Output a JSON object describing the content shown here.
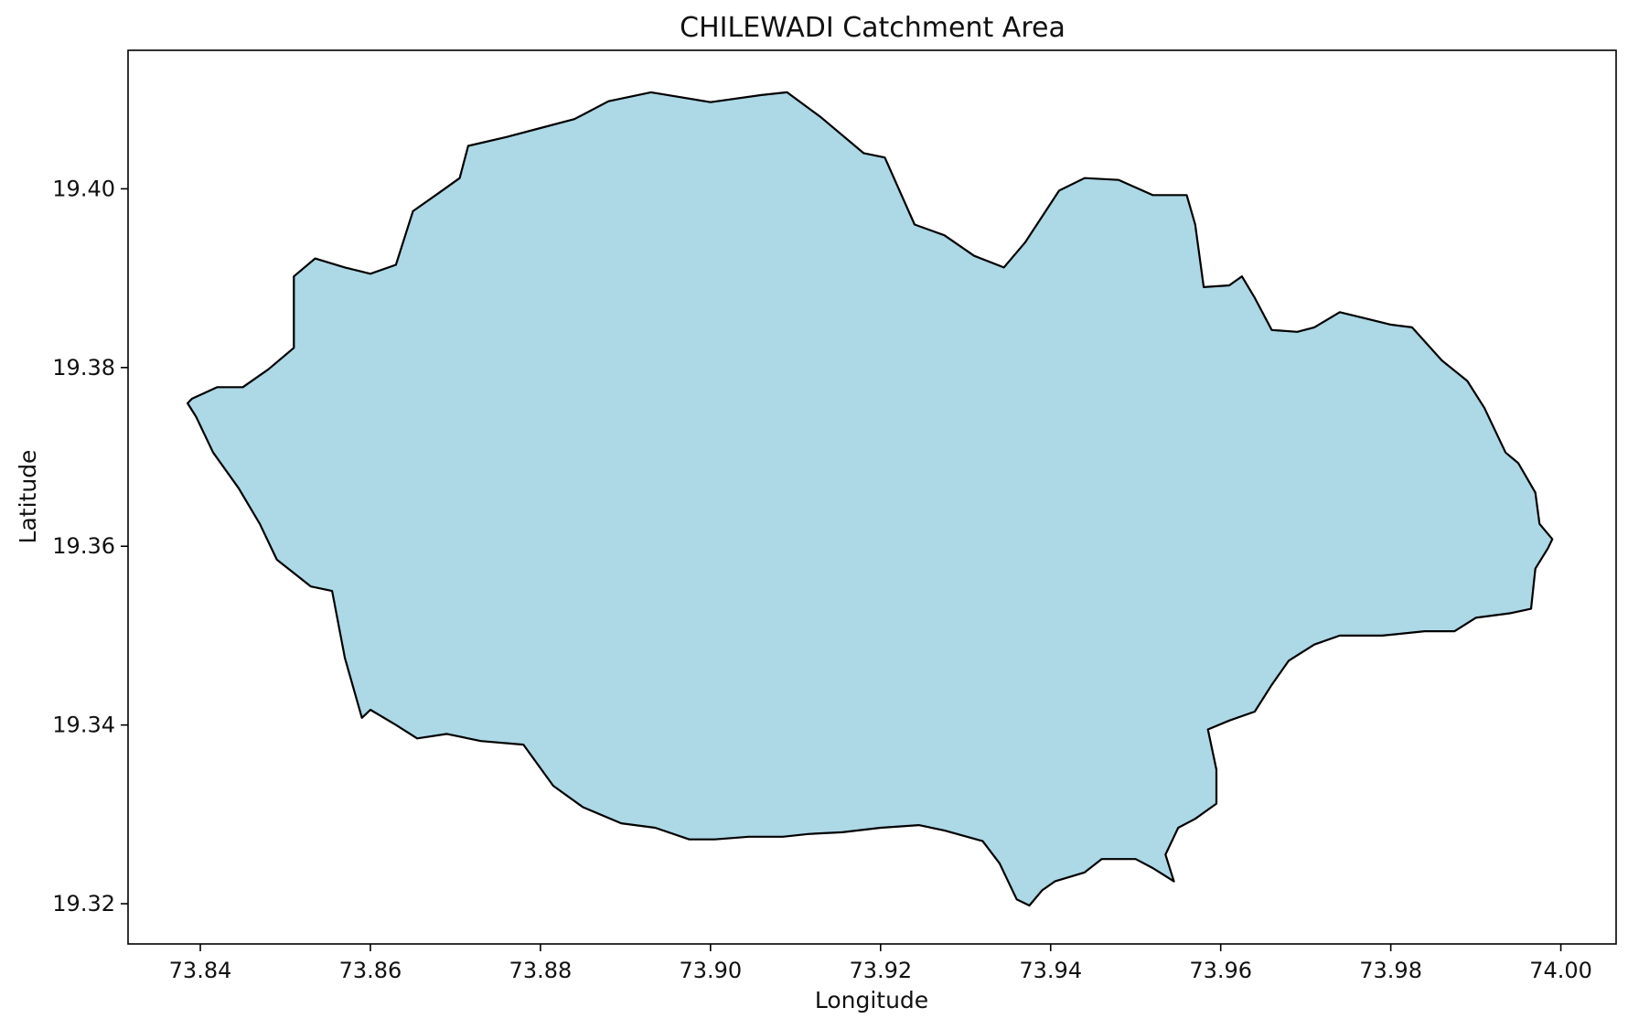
{
  "chart_data": {
    "type": "area",
    "title": "CHILEWADI Catchment Area",
    "xlabel": "Longitude",
    "ylabel": "Latitude",
    "xlim": [
      73.8315,
      74.0065
    ],
    "ylim": [
      19.3155,
      19.4155
    ],
    "xticks": [
      73.84,
      73.86,
      73.88,
      73.9,
      73.92,
      73.94,
      73.96,
      73.98,
      74.0
    ],
    "yticks": [
      19.32,
      19.34,
      19.36,
      19.38,
      19.4
    ],
    "x_tick_labels": [
      "73.84",
      "73.86",
      "73.88",
      "73.90",
      "73.92",
      "73.94",
      "73.96",
      "73.98",
      "74.00"
    ],
    "y_tick_labels": [
      "19.32",
      "19.34",
      "19.36",
      "19.38",
      "19.40"
    ],
    "grid": false,
    "fill_color": "#add8e6",
    "edge_color": "#000000",
    "boundary": [
      [
        73.839,
        19.3765
      ],
      [
        73.842,
        19.3778
      ],
      [
        73.845,
        19.3778
      ],
      [
        73.848,
        19.3798
      ],
      [
        73.851,
        19.3822
      ],
      [
        73.851,
        19.3902
      ],
      [
        73.8535,
        19.3922
      ],
      [
        73.857,
        19.3912
      ],
      [
        73.86,
        19.3905
      ],
      [
        73.863,
        19.3915
      ],
      [
        73.865,
        19.3975
      ],
      [
        73.868,
        19.3995
      ],
      [
        73.8705,
        19.4012
      ],
      [
        73.8715,
        19.4048
      ],
      [
        73.876,
        19.4058
      ],
      [
        73.88,
        19.4068
      ],
      [
        73.884,
        19.4078
      ],
      [
        73.888,
        19.4098
      ],
      [
        73.893,
        19.4108
      ],
      [
        73.9,
        19.4097
      ],
      [
        73.906,
        19.4105
      ],
      [
        73.909,
        19.4108
      ],
      [
        73.913,
        19.408
      ],
      [
        73.918,
        19.404
      ],
      [
        73.9205,
        19.4035
      ],
      [
        73.924,
        19.396
      ],
      [
        73.9275,
        19.3948
      ],
      [
        73.931,
        19.3925
      ],
      [
        73.9345,
        19.3912
      ],
      [
        73.937,
        19.394
      ],
      [
        73.941,
        19.3998
      ],
      [
        73.944,
        19.4012
      ],
      [
        73.948,
        19.401
      ],
      [
        73.952,
        19.3993
      ],
      [
        73.956,
        19.3993
      ],
      [
        73.957,
        19.396
      ],
      [
        73.958,
        19.389
      ],
      [
        73.961,
        19.3892
      ],
      [
        73.9625,
        19.3902
      ],
      [
        73.964,
        19.3878
      ],
      [
        73.966,
        19.3842
      ],
      [
        73.969,
        19.384
      ],
      [
        73.971,
        19.3845
      ],
      [
        73.974,
        19.3862
      ],
      [
        73.977,
        19.3855
      ],
      [
        73.98,
        19.3848
      ],
      [
        73.9825,
        19.3845
      ],
      [
        73.986,
        19.3808
      ],
      [
        73.989,
        19.3785
      ],
      [
        73.991,
        19.3755
      ],
      [
        73.9935,
        19.3705
      ],
      [
        73.995,
        19.3693
      ],
      [
        73.997,
        19.366
      ],
      [
        73.9975,
        19.3625
      ],
      [
        73.999,
        19.3608
      ],
      [
        73.9985,
        19.3598
      ],
      [
        73.997,
        19.3575
      ],
      [
        73.9965,
        19.353
      ],
      [
        73.994,
        19.3525
      ],
      [
        73.99,
        19.352
      ],
      [
        73.9875,
        19.3505
      ],
      [
        73.984,
        19.3505
      ],
      [
        73.979,
        19.35
      ],
      [
        73.974,
        19.35
      ],
      [
        73.971,
        19.349
      ],
      [
        73.968,
        19.3472
      ],
      [
        73.966,
        19.3445
      ],
      [
        73.964,
        19.3415
      ],
      [
        73.961,
        19.3405
      ],
      [
        73.9585,
        19.3395
      ],
      [
        73.9595,
        19.335
      ],
      [
        73.9595,
        19.3312
      ],
      [
        73.957,
        19.3295
      ],
      [
        73.955,
        19.3285
      ],
      [
        73.9535,
        19.3255
      ],
      [
        73.9545,
        19.3225
      ],
      [
        73.952,
        19.324
      ],
      [
        73.95,
        19.325
      ],
      [
        73.946,
        19.325
      ],
      [
        73.944,
        19.3235
      ],
      [
        73.9405,
        19.3225
      ],
      [
        73.939,
        19.3215
      ],
      [
        73.9375,
        19.3198
      ],
      [
        73.936,
        19.3205
      ],
      [
        73.934,
        19.3245
      ],
      [
        73.932,
        19.327
      ],
      [
        73.9275,
        19.3282
      ],
      [
        73.9245,
        19.3288
      ],
      [
        73.92,
        19.3285
      ],
      [
        73.9155,
        19.328
      ],
      [
        73.9115,
        19.3278
      ],
      [
        73.9085,
        19.3275
      ],
      [
        73.9045,
        19.3275
      ],
      [
        73.9005,
        19.3272
      ],
      [
        73.8975,
        19.3272
      ],
      [
        73.8935,
        19.3285
      ],
      [
        73.8895,
        19.329
      ],
      [
        73.885,
        19.3308
      ],
      [
        73.8815,
        19.3332
      ],
      [
        73.878,
        19.3378
      ],
      [
        73.873,
        19.3382
      ],
      [
        73.869,
        19.339
      ],
      [
        73.8655,
        19.3385
      ],
      [
        73.863,
        19.34
      ],
      [
        73.86,
        19.3417
      ],
      [
        73.859,
        19.3408
      ],
      [
        73.857,
        19.3475
      ],
      [
        73.8555,
        19.355
      ],
      [
        73.853,
        19.3555
      ],
      [
        73.849,
        19.3585
      ],
      [
        73.847,
        19.3625
      ],
      [
        73.8445,
        19.3665
      ],
      [
        73.8415,
        19.3705
      ],
      [
        73.8395,
        19.3745
      ],
      [
        73.8385,
        19.376
      ],
      [
        73.839,
        19.3765
      ]
    ]
  }
}
